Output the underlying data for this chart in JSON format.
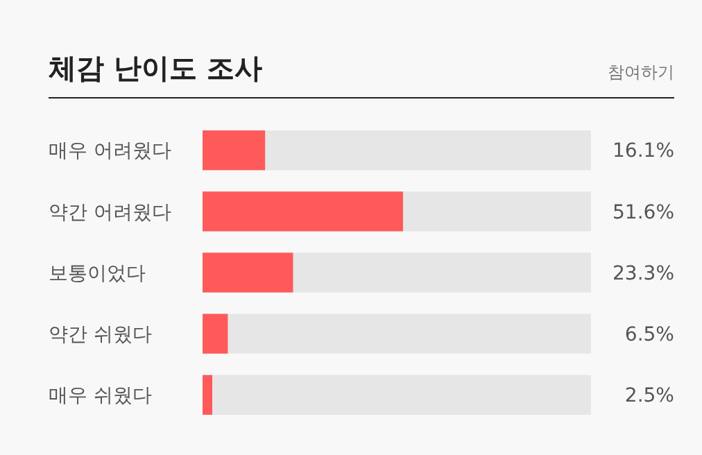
{
  "chart_data": {
    "type": "bar",
    "orientation": "horizontal",
    "title": "체감 난이도 조사",
    "annotations": [
      "참여하기"
    ],
    "categories": [
      "매우 어려웠다",
      "약간 어려웠다",
      "보통이었다",
      "약간 쉬웠다",
      "매우 쉬웠다"
    ],
    "values": [
      16.1,
      51.6,
      23.3,
      6.5,
      2.5
    ],
    "value_labels": [
      "16.1%",
      "51.6%",
      "23.3%",
      "6.5%",
      "2.5%"
    ],
    "color": "#ff5a5a",
    "xlim": [
      0,
      100
    ],
    "tick_labels": "y",
    "grid": false
  }
}
